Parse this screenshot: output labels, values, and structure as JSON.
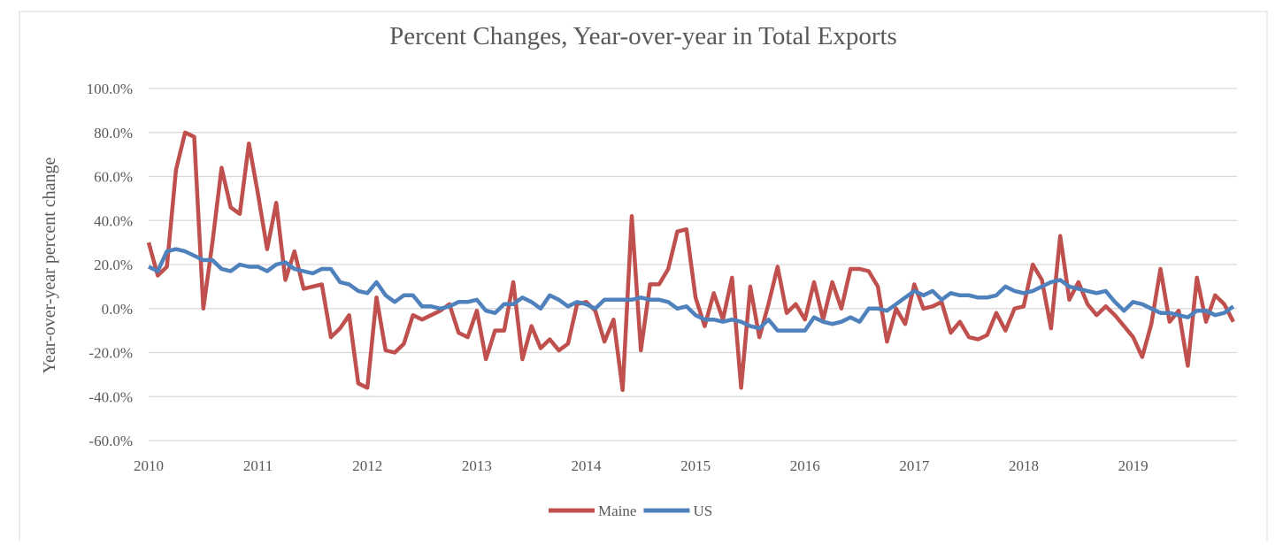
{
  "chart_data": {
    "type": "line",
    "title": "Percent Changes, Year-over-year in Total Exports",
    "y_label": "Year-over-year percent change",
    "categories": [
      "2010",
      null,
      null,
      null,
      null,
      null,
      null,
      null,
      null,
      null,
      null,
      null,
      "2011",
      null,
      null,
      null,
      null,
      null,
      null,
      null,
      null,
      null,
      null,
      null,
      "2012",
      null,
      null,
      null,
      null,
      null,
      null,
      null,
      null,
      null,
      null,
      null,
      "2013",
      null,
      null,
      null,
      null,
      null,
      null,
      null,
      null,
      null,
      null,
      null,
      "2014",
      null,
      null,
      null,
      null,
      null,
      null,
      null,
      null,
      null,
      null,
      null,
      "2015",
      null,
      null,
      null,
      null,
      null,
      null,
      null,
      null,
      null,
      null,
      null,
      "2016",
      null,
      null,
      null,
      null,
      null,
      null,
      null,
      null,
      null,
      null,
      null,
      "2017",
      null,
      null,
      null,
      null,
      null,
      null,
      null,
      null,
      null,
      null,
      null,
      "2018",
      null,
      null,
      null,
      null,
      null,
      null,
      null,
      null,
      null,
      null,
      null,
      "2019",
      null,
      null,
      null,
      null,
      null,
      null,
      null,
      null,
      null,
      null,
      null
    ],
    "series": [
      {
        "name": "Maine",
        "color": "#c0504d",
        "values": [
          30,
          15,
          19,
          63,
          80,
          78,
          0,
          30,
          64,
          46,
          43,
          75,
          52,
          27,
          48,
          13,
          26,
          9,
          10,
          11,
          -13,
          -9,
          -3,
          -34,
          -36,
          5,
          -19,
          -20,
          -16,
          -3,
          -5,
          -3,
          -1,
          2,
          -11,
          -13,
          -1,
          -23,
          -10,
          -10,
          12,
          -23,
          -8,
          -18,
          -14,
          -19,
          -16,
          2,
          3,
          -1,
          -15,
          -5,
          -37,
          42,
          -19,
          11,
          11,
          18,
          35,
          36,
          5,
          -8,
          7,
          -5,
          14,
          -36,
          10,
          -13,
          2,
          19,
          -2,
          2,
          -5,
          12,
          -5,
          12,
          0,
          18,
          18,
          17,
          10,
          -15,
          0,
          -7,
          11,
          0,
          1,
          3,
          -11,
          -6,
          -13,
          -14,
          -12,
          -2,
          -10,
          0,
          1,
          20,
          13,
          -9,
          33,
          4,
          12,
          2,
          -3,
          1,
          -3,
          -8,
          -13,
          -22,
          -7,
          18,
          -6,
          -1,
          -26,
          14,
          -6,
          6,
          2,
          -6
        ]
      },
      {
        "name": "US",
        "color": "#4f81bd",
        "values": [
          19,
          17,
          26,
          27,
          26,
          24,
          22,
          22,
          18,
          17,
          20,
          19,
          19,
          17,
          20,
          21,
          18,
          17,
          16,
          18,
          18,
          12,
          11,
          8,
          7,
          12,
          6,
          3,
          6,
          6,
          1,
          1,
          0,
          1,
          3,
          3,
          4,
          -1,
          -2,
          2,
          2,
          5,
          3,
          0,
          6,
          4,
          1,
          3,
          2,
          0,
          4,
          4,
          4,
          4,
          5,
          4,
          4,
          3,
          0,
          1,
          -3,
          -5,
          -5,
          -6,
          -5,
          -6,
          -8,
          -9,
          -5,
          -10,
          -10,
          -10,
          -10,
          -4,
          -6,
          -7,
          -6,
          -4,
          -6,
          0,
          0,
          -1,
          2,
          5,
          8,
          6,
          8,
          4,
          7,
          6,
          6,
          5,
          5,
          6,
          10,
          8,
          7,
          8,
          10,
          12,
          13,
          10,
          9,
          8,
          7,
          8,
          3,
          -1,
          3,
          2,
          0,
          -2,
          -2,
          -3,
          -4,
          -1,
          -1,
          -3,
          -2,
          1
        ]
      }
    ],
    "ylim": [
      -60,
      100
    ],
    "yticks": [
      {
        "value": -60,
        "label": "-60.0%"
      },
      {
        "value": -40,
        "label": "-40.0%"
      },
      {
        "value": -20,
        "label": "-20.0%"
      },
      {
        "value": 0,
        "label": "0.0%"
      },
      {
        "value": 20,
        "label": "20.0%"
      },
      {
        "value": 40,
        "label": "40.0%"
      },
      {
        "value": 60,
        "label": "60.0%"
      },
      {
        "value": 80,
        "label": "80.0%"
      },
      {
        "value": 100,
        "label": "100.0%"
      }
    ],
    "grid": true,
    "legend": "bottom"
  }
}
